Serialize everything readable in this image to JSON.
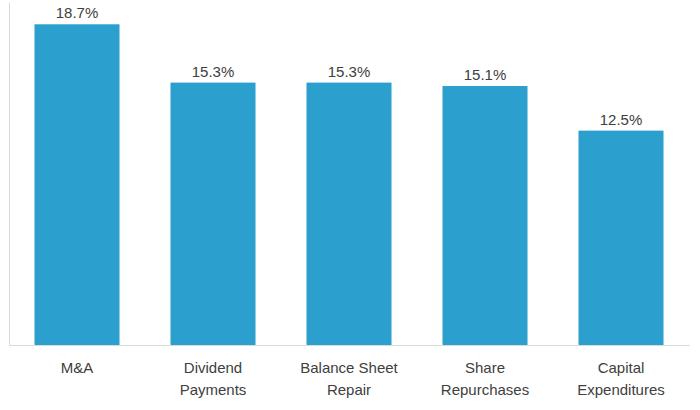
{
  "chart_data": {
    "type": "bar",
    "categories": [
      "M&A",
      "Dividend Payments",
      "Balance Sheet Repair",
      "Share Repurchases",
      "Capital Expenditures"
    ],
    "values": [
      18.7,
      15.3,
      15.3,
      15.1,
      12.5
    ],
    "value_labels": [
      "18.7%",
      "15.3%",
      "15.3%",
      "15.1%",
      "12.5%"
    ],
    "color": "#2b9fcd",
    "ylim": [
      0,
      20
    ],
    "yticks": [],
    "grid": false,
    "data_labels": true,
    "tick_labels": "x"
  }
}
